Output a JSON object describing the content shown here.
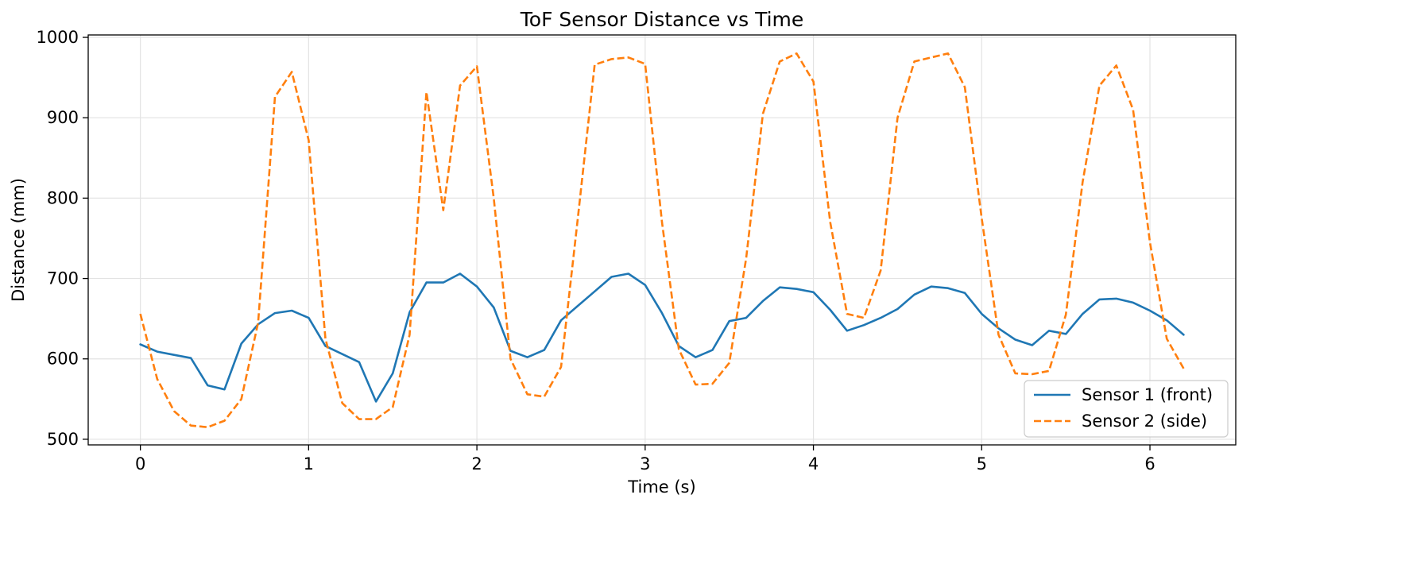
{
  "chart_data": {
    "type": "line",
    "title": "ToF Sensor Distance vs Time",
    "xlabel": "Time (s)",
    "ylabel": "Distance (mm)",
    "xlim": [
      -0.31,
      6.51
    ],
    "ylim": [
      493,
      1003
    ],
    "xticks": [
      0,
      1,
      2,
      3,
      4,
      5,
      6
    ],
    "yticks": [
      500,
      600,
      700,
      800,
      900,
      1000
    ],
    "grid": true,
    "legend_position": "lower-right",
    "x": [
      0.0,
      0.1,
      0.2,
      0.3,
      0.4,
      0.5,
      0.6,
      0.7,
      0.8,
      0.9,
      1.0,
      1.1,
      1.2,
      1.3,
      1.4,
      1.5,
      1.6,
      1.7,
      1.8,
      1.9,
      2.0,
      2.1,
      2.2,
      2.3,
      2.4,
      2.5,
      2.6,
      2.7,
      2.8,
      2.9,
      3.0,
      3.1,
      3.2,
      3.3,
      3.4,
      3.5,
      3.6,
      3.7,
      3.8,
      3.9,
      4.0,
      4.1,
      4.2,
      4.3,
      4.4,
      4.5,
      4.6,
      4.7,
      4.8,
      4.9,
      5.0,
      5.1,
      5.2,
      5.3,
      5.4,
      5.5,
      5.6,
      5.7,
      5.8,
      5.9,
      6.0,
      6.1,
      6.2
    ],
    "series": [
      {
        "name": "Sensor 1 (front)",
        "color": "#1f77b4",
        "style": "solid",
        "values": [
          618,
          609,
          605,
          601,
          567,
          562,
          619,
          643,
          657,
          660,
          651,
          616,
          606,
          596,
          547,
          582,
          658,
          695,
          695,
          706,
          690,
          664,
          610,
          602,
          611,
          648,
          666,
          684,
          702,
          706,
          692,
          657,
          616,
          602,
          611,
          647,
          651,
          672,
          689,
          687,
          683,
          661,
          635,
          642,
          651,
          662,
          680,
          690,
          688,
          682,
          656,
          638,
          624,
          617,
          635,
          631,
          656,
          674,
          675,
          670,
          660,
          648,
          630
        ]
      },
      {
        "name": "Sensor 2 (side)",
        "color": "#ff7f0e",
        "style": "dashed",
        "values": [
          656,
          575,
          535,
          517,
          515,
          523,
          550,
          645,
          926,
          957,
          872,
          625,
          545,
          525,
          525,
          540,
          630,
          932,
          785,
          940,
          964,
          800,
          600,
          556,
          553,
          590,
          775,
          966,
          973,
          975,
          967,
          770,
          612,
          568,
          569,
          595,
          725,
          905,
          970,
          980,
          945,
          770,
          656,
          651,
          710,
          900,
          970,
          975,
          980,
          938,
          775,
          630,
          582,
          581,
          585,
          655,
          820,
          940,
          965,
          910,
          745,
          625,
          588
        ]
      }
    ]
  }
}
